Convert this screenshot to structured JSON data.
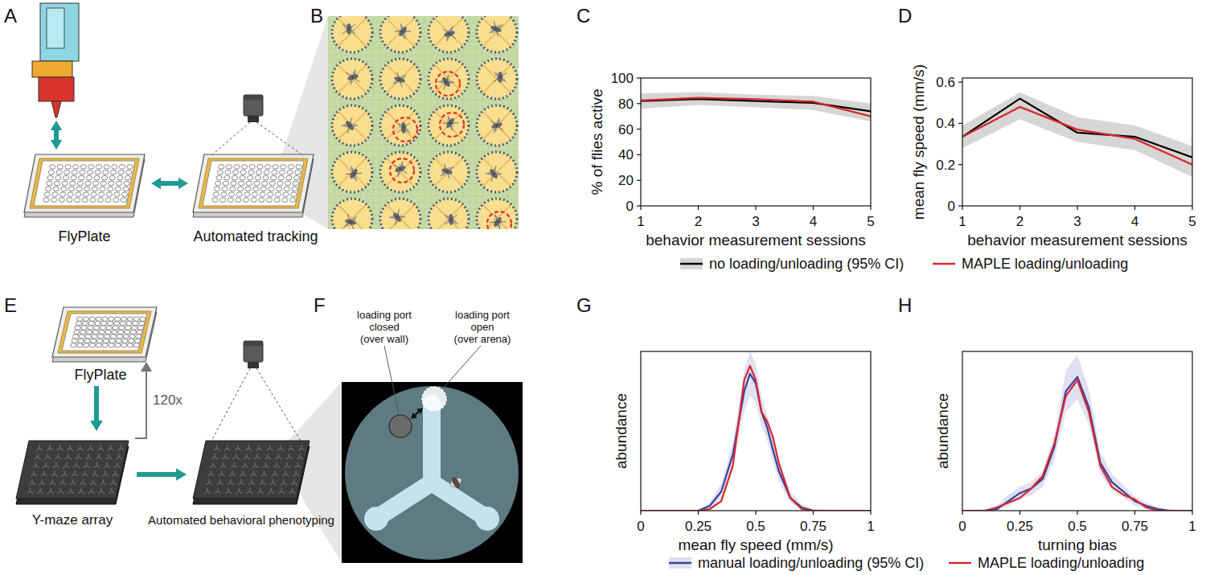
{
  "chart_data": [
    {
      "panel": "C",
      "type": "line",
      "x": [
        1,
        2,
        3,
        4,
        5
      ],
      "xlabel": "behavior measurement sessions",
      "ylabel": "% of flies active",
      "xlim": [
        1,
        5
      ],
      "xticks": [
        1,
        2,
        3,
        4,
        5
      ],
      "ylim": [
        0,
        100
      ],
      "yticks": [
        0,
        20,
        40,
        60,
        80,
        100
      ],
      "series": [
        {
          "name": "no loading/unloading (95% CI)",
          "color": "#000000",
          "values": [
            82,
            83.5,
            82,
            80.5,
            74
          ],
          "ci_low": [
            76,
            79,
            77,
            75,
            66
          ],
          "ci_high": [
            88,
            89,
            87,
            86,
            80
          ]
        },
        {
          "name": "MAPLE loading/unloading",
          "color": "#d7262b",
          "values": [
            82.5,
            84.5,
            83.5,
            81.5,
            70
          ]
        }
      ]
    },
    {
      "panel": "D",
      "type": "line",
      "x": [
        1,
        2,
        3,
        4,
        5
      ],
      "xlabel": "behavior measurement sessions",
      "ylabel": "mean fly speed (mm/s)",
      "xlim": [
        1,
        5
      ],
      "xticks": [
        1,
        2,
        3,
        4,
        5
      ],
      "ylim": [
        0,
        0.62
      ],
      "yticks": [
        0,
        0.2,
        0.4,
        0.6
      ],
      "series": [
        {
          "color": "#000000",
          "values": [
            0.335,
            0.52,
            0.355,
            0.335,
            0.235
          ],
          "ci_low": [
            0.28,
            0.42,
            0.31,
            0.27,
            0.14
          ],
          "ci_high": [
            0.39,
            0.55,
            0.43,
            0.39,
            0.29
          ]
        },
        {
          "color": "#d7262b",
          "values": [
            0.335,
            0.48,
            0.37,
            0.325,
            0.2
          ]
        }
      ]
    },
    {
      "panel": "G",
      "type": "line",
      "x": [
        0,
        0.25,
        0.3,
        0.35,
        0.4,
        0.425,
        0.45,
        0.475,
        0.5,
        0.525,
        0.55,
        0.575,
        0.6,
        0.65,
        0.7,
        0.75,
        1
      ],
      "xlabel": "mean fly speed (mm/s)",
      "ylabel": "abundance",
      "xlim": [
        0,
        1
      ],
      "xticks": [
        0,
        0.25,
        0.5,
        0.75,
        1
      ],
      "ylim": [
        0,
        1
      ],
      "tick_labels": "x",
      "series": [
        {
          "name": "manual loading/unloading (95% CI)",
          "color": "#3b3f9f",
          "values": [
            0,
            0,
            0.03,
            0.12,
            0.35,
            0.55,
            0.75,
            0.86,
            0.8,
            0.62,
            0.52,
            0.38,
            0.25,
            0.08,
            0.02,
            0,
            0
          ],
          "ci_low": [
            0,
            0,
            0.01,
            0.08,
            0.28,
            0.46,
            0.62,
            0.72,
            0.68,
            0.53,
            0.44,
            0.31,
            0.19,
            0.05,
            0.01,
            0,
            0
          ],
          "ci_high": [
            0,
            0,
            0.05,
            0.17,
            0.43,
            0.65,
            0.88,
            1,
            0.92,
            0.72,
            0.6,
            0.45,
            0.31,
            0.12,
            0.04,
            0.01,
            0
          ]
        },
        {
          "name": "MAPLE loading/unloading",
          "color": "#d7262b",
          "values": [
            0,
            0,
            0.01,
            0.06,
            0.28,
            0.55,
            0.82,
            0.91,
            0.82,
            0.62,
            0.56,
            0.46,
            0.3,
            0.08,
            0.01,
            0,
            0
          ]
        }
      ]
    },
    {
      "panel": "H",
      "type": "line",
      "x": [
        0,
        0.1,
        0.15,
        0.2,
        0.25,
        0.3,
        0.35,
        0.4,
        0.45,
        0.5,
        0.55,
        0.6,
        0.65,
        0.7,
        0.75,
        0.8,
        0.85,
        0.9,
        1
      ],
      "xlabel": "turning bias",
      "ylabel": "abundance",
      "xlim": [
        0,
        1
      ],
      "xticks": [
        0,
        0.25,
        0.5,
        0.75,
        1
      ],
      "ylim": [
        0,
        1
      ],
      "tick_labels": "x",
      "series": [
        {
          "color": "#3b3f9f",
          "values": [
            0,
            0,
            0.01,
            0.06,
            0.11,
            0.14,
            0.2,
            0.4,
            0.75,
            0.84,
            0.65,
            0.3,
            0.18,
            0.12,
            0.06,
            0.03,
            0.01,
            0,
            0
          ],
          "ci_low": [
            0,
            0,
            0,
            0.03,
            0.07,
            0.1,
            0.15,
            0.32,
            0.62,
            0.7,
            0.54,
            0.23,
            0.13,
            0.08,
            0.03,
            0.01,
            0,
            0,
            0
          ],
          "ci_high": [
            0,
            0.01,
            0.03,
            0.1,
            0.15,
            0.18,
            0.25,
            0.48,
            0.88,
            0.98,
            0.76,
            0.37,
            0.23,
            0.16,
            0.09,
            0.05,
            0.02,
            0.01,
            0
          ]
        },
        {
          "color": "#d7262b",
          "values": [
            0,
            0,
            0.02,
            0.05,
            0.08,
            0.14,
            0.22,
            0.42,
            0.72,
            0.82,
            0.62,
            0.28,
            0.15,
            0.1,
            0.07,
            0.02,
            0,
            0,
            0
          ]
        }
      ]
    }
  ],
  "diagram": {
    "A": {
      "label": "A",
      "plate": "FlyPlate",
      "tracking": "Automated tracking"
    },
    "B": {
      "label": "B"
    },
    "E": {
      "label": "E",
      "plate": "FlyPlate",
      "repeat": "120x",
      "maze": "Y-maze array",
      "phenotyping": "Automated behavioral phenotyping"
    },
    "F": {
      "label": "F",
      "closed": [
        "loading port",
        "closed",
        "(over wall)"
      ],
      "open": [
        "loading port",
        "open",
        "(over arena)"
      ]
    }
  }
}
